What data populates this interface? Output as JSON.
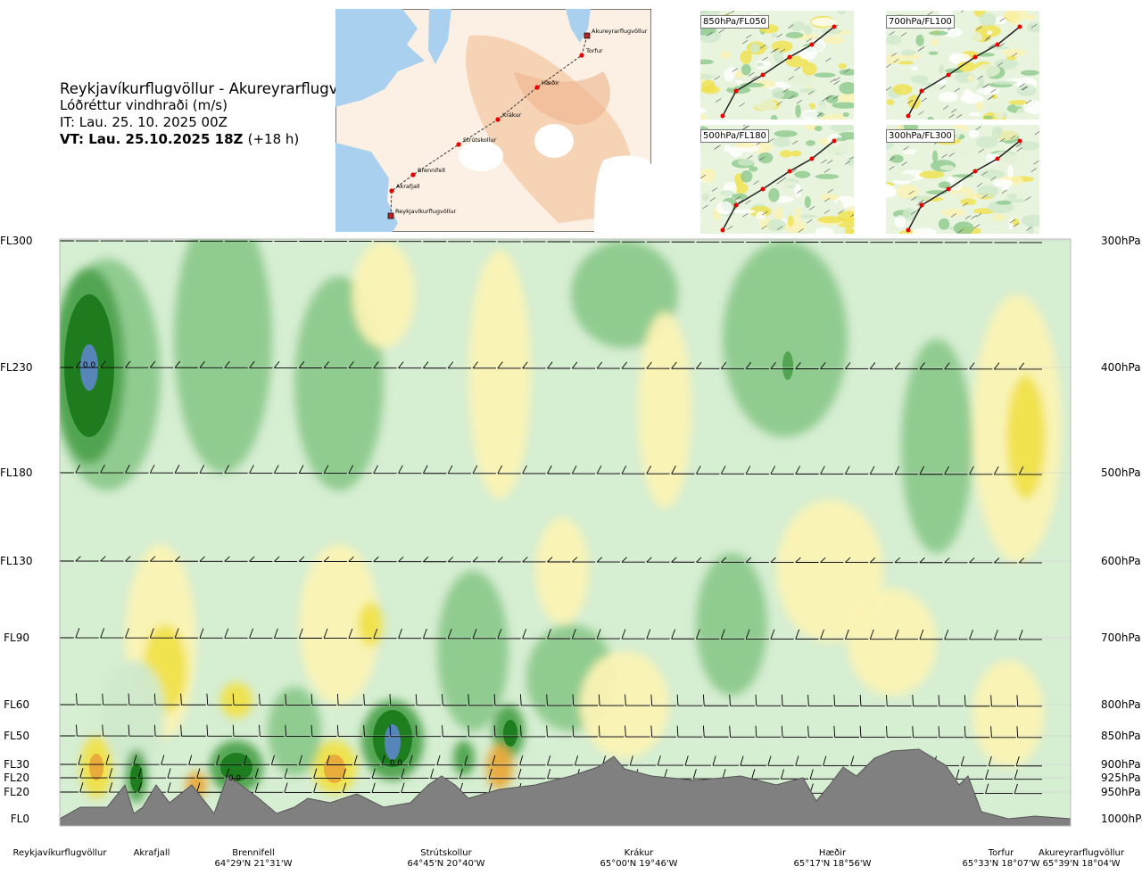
{
  "header": {
    "title": "Reykjavíkurflugvöllur - Akureyrarflugvöllur",
    "subtitle": "Lóðréttur vindhraði (m/s)",
    "issue_time": "IT: Lau. 25. 10. 2025 00Z",
    "valid_time": "VT: Lau. 25.10.2025 18Z",
    "lead": "(+18 h)"
  },
  "route_map": {
    "waypoints": [
      {
        "name": "Akureyrarflugvöllur",
        "type": "airport"
      },
      {
        "name": "Torfur",
        "type": "waypoint"
      },
      {
        "name": "Hæðir",
        "type": "waypoint"
      },
      {
        "name": "Krákur",
        "type": "waypoint"
      },
      {
        "name": "Strútskollur",
        "type": "waypoint"
      },
      {
        "name": "Brennifell",
        "type": "waypoint"
      },
      {
        "name": "Akrafjall",
        "type": "waypoint"
      },
      {
        "name": "Reykjavíkurflugvöllur",
        "type": "airport"
      }
    ]
  },
  "mini_maps": [
    {
      "label": "850hPa/FL050"
    },
    {
      "label": "700hPa/FL100"
    },
    {
      "label": "500hPa/FL180"
    },
    {
      "label": "300hPa/FL300"
    }
  ],
  "chart_data": {
    "type": "heatmap",
    "title": "Lóðréttur vindhraði (m/s)",
    "left_axis": [
      {
        "label": "FL300",
        "pressure": 300
      },
      {
        "label": "FL230",
        "pressure": 400
      },
      {
        "label": "FL180",
        "pressure": 500
      },
      {
        "label": "FL130",
        "pressure": 600
      },
      {
        "label": "FL90",
        "pressure": 700
      },
      {
        "label": "FL60",
        "pressure": 800
      },
      {
        "label": "FL50",
        "pressure": 850
      },
      {
        "label": "FL30",
        "pressure": 900
      },
      {
        "label": "FL20",
        "pressure": 925
      },
      {
        "label": "FL20",
        "pressure": 950
      },
      {
        "label": "FL0",
        "pressure": 1000
      }
    ],
    "right_axis": [
      "300hPa",
      "400hPa",
      "500hPa",
      "600hPa",
      "700hPa",
      "800hPa",
      "850hPa",
      "900hPa",
      "925hPa",
      "950hPa",
      "1000hPa"
    ],
    "contour_labels": [
      "0.0",
      "0.0",
      "0.0"
    ],
    "bottom_points": [
      {
        "name": "Reykjavíkurflugvöllur",
        "coord": ""
      },
      {
        "name": "Akrafjall",
        "coord": ""
      },
      {
        "name": "Brennifell",
        "coord": "64°29'N 21°31'W"
      },
      {
        "name": "Strútskollur",
        "coord": "64°45'N 20°40'W"
      },
      {
        "name": "Krákur",
        "coord": "65°00'N 19°46'W"
      },
      {
        "name": "Hæðir",
        "coord": "65°17'N 18°56'W"
      },
      {
        "name": "Torfur",
        "coord": "65°33'N 18°07'W"
      },
      {
        "name": "Akureyrarflugvöllur",
        "coord": "65°39'N 18°04'W"
      }
    ],
    "colors": {
      "strong_up": "#1b7a1b",
      "moderate_up": "#4ea24e",
      "weak_up": "#8cc98c",
      "very_weak_up": "#cfe9cc",
      "neutral": "#ffffff",
      "weak_down": "#fbf3b4",
      "moderate_down": "#f0e14a",
      "strong_down": "#e8a93a",
      "extreme": "#5a86c0",
      "terrain": "#808080"
    }
  }
}
